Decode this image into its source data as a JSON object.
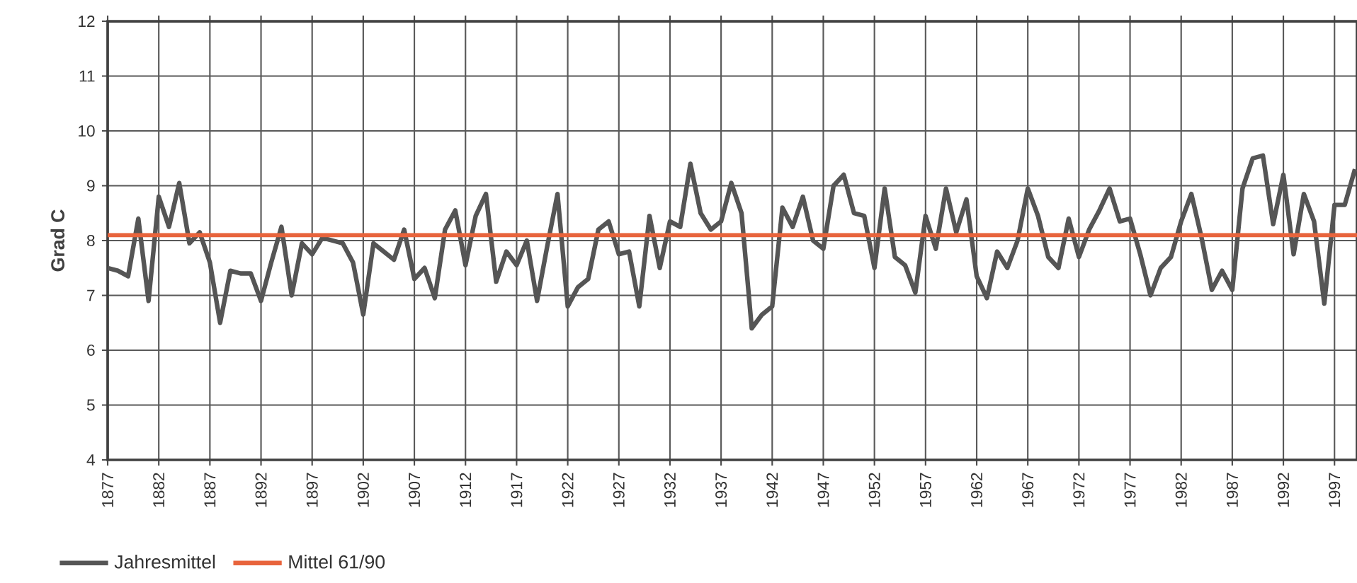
{
  "chart_data": {
    "type": "line",
    "ylabel": "Grad C",
    "x": [
      1877,
      1878,
      1879,
      1880,
      1881,
      1882,
      1883,
      1884,
      1885,
      1886,
      1887,
      1888,
      1889,
      1890,
      1891,
      1892,
      1893,
      1894,
      1895,
      1896,
      1897,
      1898,
      1899,
      1900,
      1901,
      1902,
      1903,
      1904,
      1905,
      1906,
      1907,
      1908,
      1909,
      1910,
      1911,
      1912,
      1913,
      1914,
      1915,
      1916,
      1917,
      1918,
      1919,
      1920,
      1921,
      1922,
      1923,
      1924,
      1925,
      1926,
      1927,
      1928,
      1929,
      1930,
      1931,
      1932,
      1933,
      1934,
      1935,
      1936,
      1937,
      1938,
      1939,
      1940,
      1941,
      1942,
      1943,
      1944,
      1945,
      1946,
      1947,
      1948,
      1949,
      1950,
      1951,
      1952,
      1953,
      1954,
      1955,
      1956,
      1957,
      1958,
      1959,
      1960,
      1961,
      1962,
      1963,
      1964,
      1965,
      1966,
      1967,
      1968,
      1969,
      1970,
      1971,
      1972,
      1973,
      1974,
      1975,
      1976,
      1977,
      1978,
      1979,
      1980,
      1981,
      1982,
      1983,
      1984,
      1985,
      1986,
      1987,
      1988,
      1989,
      1990,
      1991,
      1992,
      1993,
      1994,
      1995,
      1996,
      1997,
      1998,
      1999
    ],
    "series": [
      {
        "name": "Jahresmittel",
        "color": "#555555",
        "values": [
          7.5,
          7.45,
          7.35,
          8.4,
          6.9,
          8.8,
          8.25,
          9.05,
          7.95,
          8.15,
          7.6,
          6.5,
          7.45,
          7.4,
          7.4,
          6.9,
          7.6,
          8.25,
          7.0,
          7.95,
          7.75,
          8.05,
          8.0,
          7.95,
          7.6,
          6.65,
          7.95,
          7.8,
          7.65,
          8.2,
          7.3,
          7.5,
          6.95,
          8.2,
          8.55,
          7.55,
          8.45,
          8.85,
          7.25,
          7.8,
          7.55,
          8.0,
          6.9,
          7.9,
          8.85,
          6.8,
          7.15,
          7.3,
          8.2,
          8.35,
          7.75,
          7.8,
          6.8,
          8.45,
          7.5,
          8.35,
          8.25,
          9.4,
          8.5,
          8.2,
          8.35,
          9.05,
          8.5,
          6.4,
          6.65,
          6.8,
          8.6,
          8.25,
          8.8,
          8.0,
          7.85,
          9.0,
          9.2,
          8.5,
          8.45,
          7.5,
          8.95,
          7.7,
          7.55,
          7.05,
          8.45,
          7.85,
          8.95,
          8.15,
          8.75,
          7.35,
          6.95,
          7.8,
          7.5,
          8.0,
          8.95,
          8.45,
          7.7,
          7.5,
          8.4,
          7.7,
          8.2,
          8.55,
          8.95,
          8.35,
          8.4,
          7.75,
          7.0,
          7.5,
          7.7,
          8.35,
          8.85,
          8.05,
          7.1,
          7.45,
          7.1,
          8.95,
          9.5,
          9.55,
          8.3,
          9.2,
          7.75,
          8.85,
          8.35,
          6.85,
          8.65,
          8.65,
          9.3
        ]
      }
    ],
    "ref_lines": [
      {
        "axis": "y",
        "value": 8.1,
        "label": "Mittel 61/90",
        "color": "#e8643c"
      }
    ],
    "xlim": [
      1877,
      1999.2
    ],
    "xticks": [
      1877,
      1882,
      1887,
      1892,
      1897,
      1902,
      1907,
      1912,
      1917,
      1922,
      1927,
      1932,
      1937,
      1942,
      1947,
      1952,
      1957,
      1962,
      1967,
      1972,
      1977,
      1982,
      1987,
      1992,
      1997
    ],
    "ylim": [
      4,
      12
    ],
    "yticks": [
      4,
      5,
      6,
      7,
      8,
      9,
      10,
      11,
      12
    ],
    "grid": true,
    "legend": "bottom left",
    "marker": "none",
    "line_style": "solid"
  }
}
